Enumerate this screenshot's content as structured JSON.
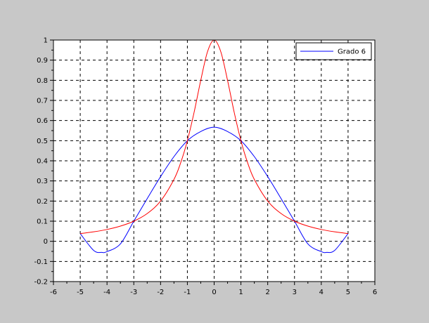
{
  "chart_data": {
    "type": "line",
    "title": "",
    "xlabel": "",
    "ylabel": "",
    "xlim": [
      -6,
      6
    ],
    "ylim": [
      -0.2,
      1
    ],
    "xticks": [
      -6,
      -5,
      -4,
      -3,
      -2,
      -1,
      0,
      1,
      2,
      3,
      4,
      5,
      6
    ],
    "yticks": [
      -0.2,
      -0.1,
      0,
      0.1,
      0.2,
      0.3,
      0.4,
      0.5,
      0.6,
      0.7,
      0.8,
      0.9,
      1
    ],
    "xtick_labels": [
      "-6",
      "-5",
      "-4",
      "-3",
      "-2",
      "-1",
      "0",
      "1",
      "2",
      "3",
      "4",
      "5",
      "6"
    ],
    "ytick_labels": [
      "-0.2",
      "-0.1",
      "0",
      "0.1",
      "0.2",
      "0.3",
      "0.4",
      "0.5",
      "0.6",
      "0.7",
      "0.8",
      "0.9",
      "1"
    ],
    "grid": true,
    "legend_position": "top-right",
    "series": [
      {
        "name": "Grado 6",
        "color": "#0000ff",
        "x": [
          -5,
          -4.5,
          -4.2,
          -4,
          -3.5,
          -3,
          -2.5,
          -2,
          -1.5,
          -1,
          -0.5,
          0,
          0.5,
          1,
          1.5,
          2,
          2.5,
          3,
          3.5,
          4,
          4.2,
          4.5,
          5
        ],
        "y": [
          0.0385,
          -0.0453,
          -0.0548,
          -0.0511,
          -0.0127,
          0.1,
          0.2122,
          0.3214,
          0.4209,
          0.5,
          0.5455,
          0.5669,
          0.5455,
          0.5,
          0.4209,
          0.3214,
          0.2122,
          0.1,
          -0.0127,
          -0.0511,
          -0.0548,
          -0.0453,
          0.0385
        ]
      },
      {
        "color": "#ff0000",
        "x": [
          -5,
          -4.5,
          -4,
          -3.5,
          -3,
          -2.5,
          -2,
          -1.5,
          -1.25,
          -1,
          -0.75,
          -0.5,
          -0.25,
          0,
          0.25,
          0.5,
          0.75,
          1,
          1.25,
          1.5,
          2,
          2.5,
          3,
          3.5,
          4,
          4.5,
          5
        ],
        "y": [
          0.0385,
          0.0471,
          0.0588,
          0.0755,
          0.1,
          0.1379,
          0.2,
          0.3077,
          0.3902,
          0.5,
          0.64,
          0.8,
          0.9412,
          1,
          0.9412,
          0.8,
          0.64,
          0.5,
          0.3902,
          0.3077,
          0.2,
          0.1379,
          0.1,
          0.0755,
          0.0588,
          0.0471,
          0.0385
        ]
      }
    ]
  }
}
